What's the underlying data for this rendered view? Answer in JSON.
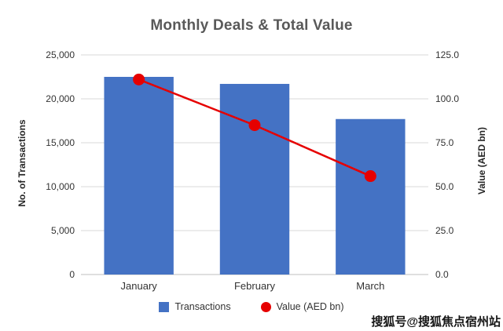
{
  "chart_data": {
    "type": "combo",
    "title": "Monthly Deals & Total Value",
    "categories": [
      "January",
      "February",
      "March"
    ],
    "series": [
      {
        "name": "Transactions",
        "type": "bar",
        "axis": "left",
        "values": [
          22500,
          21700,
          17700
        ],
        "color": "#4472C4"
      },
      {
        "name": "Value (AED bn)",
        "type": "line",
        "axis": "right",
        "values": [
          111,
          85,
          56
        ],
        "color": "#E60000"
      }
    ],
    "left_axis": {
      "label": "No. of Transactions",
      "min": 0,
      "max": 25000,
      "step": 5000,
      "ticks": [
        "0",
        "5,000",
        "10,000",
        "15,000",
        "20,000",
        "25,000"
      ]
    },
    "right_axis": {
      "label": "Value (AED bn)",
      "min": 0,
      "max": 125,
      "step": 25,
      "ticks": [
        "0.0",
        "25.0",
        "50.0",
        "75.0",
        "100.0",
        "125.0"
      ]
    },
    "grid": true,
    "gridline_color": "#d9d9d9",
    "axis_line_color": "#bfbfbf",
    "legend_position": "bottom"
  },
  "watermark": "搜狐号@搜狐焦点宿州站"
}
